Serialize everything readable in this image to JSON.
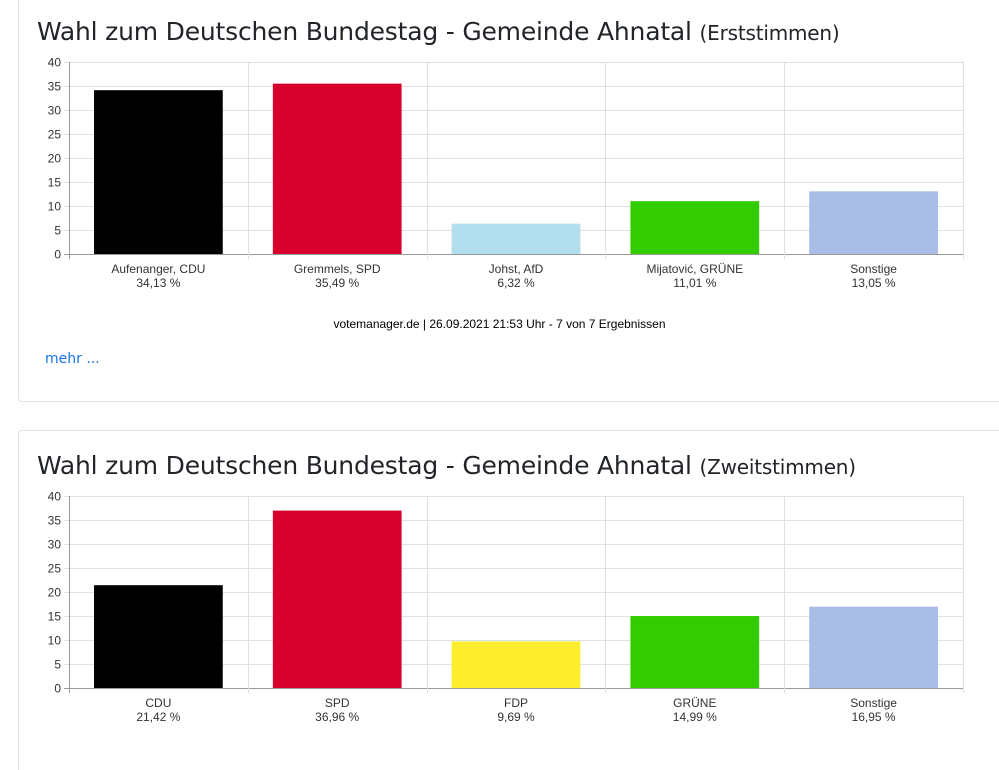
{
  "charts": [
    {
      "title": "Wahl zum Deutschen Bundestag - Gemeinde Ahnatal",
      "subtitle": "(Erststimmen)",
      "credit": "votemanager.de | 26.09.2021 21:53 Uhr - 7 von 7 Ergebnissen",
      "more_link": "mehr ..."
    },
    {
      "title": "Wahl zum Deutschen Bundestag - Gemeinde Ahnatal",
      "subtitle": "(Zweitstimmen)"
    }
  ],
  "chart_data": [
    {
      "type": "bar",
      "title": "Wahl zum Deutschen Bundestag - Gemeinde Ahnatal (Erststimmen)",
      "categories": [
        "Aufenanger, CDU",
        "Gremmels, SPD",
        "Johst, AfD",
        "Mijatović, GRÜNE",
        "Sonstige"
      ],
      "values": [
        34.13,
        35.49,
        6.32,
        11.01,
        13.05
      ],
      "value_labels": [
        "34,13 %",
        "35,49 %",
        "6,32 %",
        "11,01 %",
        "13,05 %"
      ],
      "colors": [
        "#000000",
        "#d7002c",
        "#b3def0",
        "#33cc00",
        "#aabde6"
      ],
      "ylim": [
        0,
        40
      ],
      "yticks": [
        0,
        5,
        10,
        15,
        20,
        25,
        30,
        35,
        40
      ],
      "grid": true,
      "legend": "none"
    },
    {
      "type": "bar",
      "title": "Wahl zum Deutschen Bundestag - Gemeinde Ahnatal (Zweitstimmen)",
      "categories": [
        "CDU",
        "SPD",
        "FDP",
        "GRÜNE",
        "Sonstige"
      ],
      "values": [
        21.42,
        36.96,
        9.69,
        14.99,
        16.95
      ],
      "value_labels": [
        "21,42 %",
        "36,96 %",
        "9,69 %",
        "14,99 %",
        "16,95 %"
      ],
      "colors": [
        "#000000",
        "#d7002c",
        "#fcee2c",
        "#33cc00",
        "#aabde6"
      ],
      "ylim": [
        0,
        40
      ],
      "yticks": [
        0,
        5,
        10,
        15,
        20,
        25,
        30,
        35,
        40
      ],
      "grid": true,
      "legend": "none"
    }
  ]
}
